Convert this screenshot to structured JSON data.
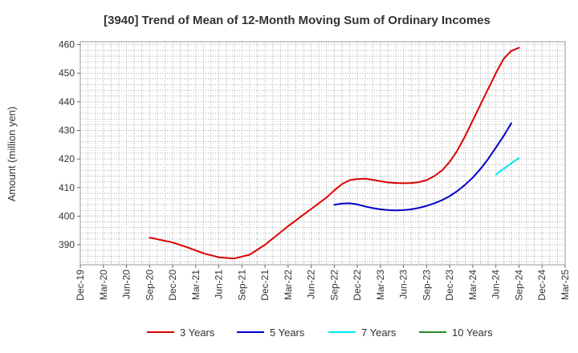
{
  "chart_data": {
    "type": "line",
    "title": "[3940]  Trend of Mean of 12-Month Moving Sum of Ordinary Incomes",
    "xlabel": "",
    "ylabel": "Amount (million yen)",
    "ylim": [
      383,
      461
    ],
    "yticks": [
      390,
      400,
      410,
      420,
      430,
      440,
      450,
      460
    ],
    "categories": [
      "Dec-19",
      "Mar-20",
      "Jun-20",
      "Sep-20",
      "Dec-20",
      "Mar-21",
      "Jun-21",
      "Sep-21",
      "Dec-21",
      "Mar-22",
      "Jun-22",
      "Sep-22",
      "Dec-22",
      "Mar-23",
      "Jun-23",
      "Sep-23",
      "Dec-23",
      "Mar-24",
      "Jun-24",
      "Sep-24",
      "Dec-24",
      "Mar-25"
    ],
    "x_months": [
      0,
      3,
      6,
      9,
      12,
      15,
      18,
      21,
      24,
      27,
      30,
      33,
      36,
      39,
      42,
      45,
      48,
      51,
      54,
      57,
      60,
      63
    ],
    "grid": true,
    "series": [
      {
        "name": "3 Years",
        "color": "#dd0000",
        "points": [
          [
            9,
            392.5
          ],
          [
            12,
            390.8
          ],
          [
            14,
            389.0
          ],
          [
            16,
            387.0
          ],
          [
            18,
            385.6
          ],
          [
            20,
            385.2
          ],
          [
            22,
            386.5
          ],
          [
            24,
            390.0
          ],
          [
            27,
            396.5
          ],
          [
            30,
            402.5
          ],
          [
            32,
            406.5
          ],
          [
            33,
            409.0
          ],
          [
            34,
            411.2
          ],
          [
            35,
            412.6
          ],
          [
            36,
            413.0
          ],
          [
            37,
            413.1
          ],
          [
            38,
            412.7
          ],
          [
            39,
            412.2
          ],
          [
            40,
            411.8
          ],
          [
            41,
            411.6
          ],
          [
            42,
            411.5
          ],
          [
            43,
            411.6
          ],
          [
            44,
            411.9
          ],
          [
            45,
            412.6
          ],
          [
            46,
            414.0
          ],
          [
            47,
            416.0
          ],
          [
            48,
            419.0
          ],
          [
            49,
            423.0
          ],
          [
            50,
            428.0
          ],
          [
            51,
            433.5
          ],
          [
            52,
            439.0
          ],
          [
            53,
            444.5
          ],
          [
            54,
            450.0
          ],
          [
            55,
            455.0
          ],
          [
            56,
            457.8
          ],
          [
            57,
            458.9
          ]
        ]
      },
      {
        "name": "5 Years",
        "color": "#0000cc",
        "points": [
          [
            33,
            404.0
          ],
          [
            34,
            404.4
          ],
          [
            35,
            404.5
          ],
          [
            36,
            404.1
          ],
          [
            37,
            403.4
          ],
          [
            38,
            402.8
          ],
          [
            39,
            402.4
          ],
          [
            40,
            402.1
          ],
          [
            41,
            402.0
          ],
          [
            42,
            402.1
          ],
          [
            43,
            402.4
          ],
          [
            44,
            402.9
          ],
          [
            45,
            403.6
          ],
          [
            46,
            404.5
          ],
          [
            47,
            405.6
          ],
          [
            48,
            407.0
          ],
          [
            49,
            408.8
          ],
          [
            50,
            411.0
          ],
          [
            51,
            413.5
          ],
          [
            52,
            416.5
          ],
          [
            53,
            420.0
          ],
          [
            54,
            424.0
          ],
          [
            55,
            428.0
          ],
          [
            56,
            432.5
          ]
        ]
      },
      {
        "name": "7 Years",
        "color": "#00e5ee",
        "points": [
          [
            54,
            414.5
          ],
          [
            55,
            416.5
          ],
          [
            56,
            418.5
          ],
          [
            57,
            420.3
          ]
        ]
      },
      {
        "name": "10 Years",
        "color": "#228b22",
        "points": []
      }
    ],
    "legend_position": "bottom"
  }
}
